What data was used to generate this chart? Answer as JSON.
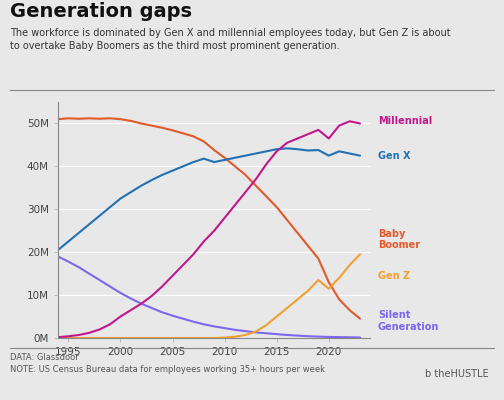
{
  "title": "Generation gaps",
  "subtitle": "The workforce is dominated by Gen X and millennial employees today, but Gen Z is about\nto overtake Baby Boomers as the third most prominent generation.",
  "source": "DATA: Glassdoor\nNOTE: US Census Bureau data for employees working 35+ hours per week",
  "xlim": [
    1994,
    2024
  ],
  "ylim": [
    0,
    55000000
  ],
  "yticks": [
    0,
    10000000,
    20000000,
    30000000,
    40000000,
    50000000
  ],
  "ytick_labels": [
    "0M",
    "10M",
    "20M",
    "30M",
    "40M",
    "50M"
  ],
  "xticks": [
    1995,
    2000,
    2005,
    2010,
    2015,
    2020
  ],
  "background_color": "#e8e8e8",
  "series": {
    "Baby Boomer": {
      "color": "#e05a2b",
      "years": [
        1994,
        1995,
        1996,
        1997,
        1998,
        1999,
        2000,
        2001,
        2002,
        2003,
        2004,
        2005,
        2006,
        2007,
        2008,
        2009,
        2010,
        2011,
        2012,
        2013,
        2014,
        2015,
        2016,
        2017,
        2018,
        2019,
        2020,
        2021,
        2022,
        2023
      ],
      "values": [
        51000000,
        51200000,
        51100000,
        51200000,
        51100000,
        51200000,
        51000000,
        50600000,
        50000000,
        49500000,
        49000000,
        48400000,
        47700000,
        47000000,
        45800000,
        43800000,
        42000000,
        40000000,
        38000000,
        35500000,
        33000000,
        30500000,
        27500000,
        24500000,
        21500000,
        18500000,
        13000000,
        9000000,
        6500000,
        4500000
      ]
    },
    "Gen X": {
      "color": "#2271b3",
      "years": [
        1994,
        1995,
        1996,
        1997,
        1998,
        1999,
        2000,
        2001,
        2002,
        2003,
        2004,
        2005,
        2006,
        2007,
        2008,
        2009,
        2010,
        2011,
        2012,
        2013,
        2014,
        2015,
        2016,
        2017,
        2018,
        2019,
        2020,
        2021,
        2022,
        2023
      ],
      "values": [
        20500000,
        22500000,
        24500000,
        26500000,
        28500000,
        30500000,
        32500000,
        34000000,
        35500000,
        36800000,
        38000000,
        39000000,
        40000000,
        41000000,
        41800000,
        41000000,
        41500000,
        42000000,
        42500000,
        43000000,
        43500000,
        44000000,
        44200000,
        44000000,
        43700000,
        43800000,
        42500000,
        43500000,
        43000000,
        42500000
      ]
    },
    "Millennial": {
      "color": "#c0188c",
      "years": [
        1994,
        1995,
        1996,
        1997,
        1998,
        1999,
        2000,
        2001,
        2002,
        2003,
        2004,
        2005,
        2006,
        2007,
        2008,
        2009,
        2010,
        2011,
        2012,
        2013,
        2014,
        2015,
        2016,
        2017,
        2018,
        2019,
        2020,
        2021,
        2022,
        2023
      ],
      "values": [
        200000,
        400000,
        700000,
        1200000,
        2000000,
        3200000,
        5000000,
        6500000,
        8000000,
        9800000,
        12000000,
        14500000,
        17000000,
        19500000,
        22500000,
        25000000,
        28000000,
        31000000,
        34000000,
        37000000,
        40500000,
        43500000,
        45500000,
        46500000,
        47500000,
        48500000,
        46500000,
        49500000,
        50500000,
        50000000
      ]
    },
    "Gen Z": {
      "color": "#f0a030",
      "years": [
        1994,
        1995,
        1996,
        1997,
        1998,
        1999,
        2000,
        2001,
        2002,
        2003,
        2004,
        2005,
        2006,
        2007,
        2008,
        2009,
        2010,
        2011,
        2012,
        2013,
        2014,
        2015,
        2016,
        2017,
        2018,
        2019,
        2020,
        2021,
        2022,
        2023
      ],
      "values": [
        0,
        0,
        0,
        0,
        0,
        0,
        0,
        0,
        0,
        0,
        0,
        0,
        0,
        0,
        0,
        0,
        100000,
        300000,
        700000,
        1500000,
        3000000,
        5000000,
        7000000,
        9000000,
        11000000,
        13500000,
        11500000,
        14000000,
        17000000,
        19500000
      ]
    },
    "Silent Generation": {
      "color": "#7b68ee",
      "years": [
        1994,
        1995,
        1996,
        1997,
        1998,
        1999,
        2000,
        2001,
        2002,
        2003,
        2004,
        2005,
        2006,
        2007,
        2008,
        2009,
        2010,
        2011,
        2012,
        2013,
        2014,
        2015,
        2016,
        2017,
        2018,
        2019,
        2020,
        2021,
        2022,
        2023
      ],
      "values": [
        19000000,
        17800000,
        16500000,
        15000000,
        13500000,
        12000000,
        10500000,
        9200000,
        8000000,
        7000000,
        6000000,
        5200000,
        4500000,
        3800000,
        3200000,
        2700000,
        2300000,
        1900000,
        1600000,
        1300000,
        1100000,
        900000,
        700000,
        550000,
        420000,
        320000,
        250000,
        200000,
        160000,
        130000
      ]
    }
  },
  "labels": {
    "Millennial": {
      "y": 50500000,
      "text": "Millennial",
      "color": "#c0188c"
    },
    "Gen X": {
      "y": 42500000,
      "text": "Gen X",
      "color": "#2271b3"
    },
    "Baby Boomer": {
      "y": 23000000,
      "text": "Baby\nBoomer",
      "color": "#e05a2b"
    },
    "Gen Z": {
      "y": 14500000,
      "text": "Gen Z",
      "color": "#f0a030"
    },
    "Silent Generation": {
      "y": 4000000,
      "text": "Silent\nGeneration",
      "color": "#7b68ee"
    }
  }
}
